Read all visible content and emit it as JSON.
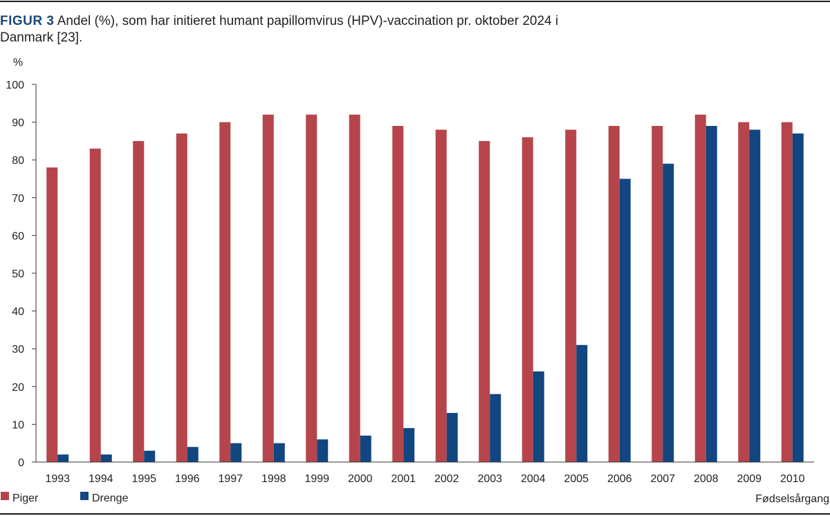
{
  "caption": {
    "label": "FIGUR 3",
    "text": "Andel (%), som har initieret humant papillomvirus (HPV)-vaccination pr. oktober 2024 i Danmark [23]."
  },
  "chart_data": {
    "type": "bar",
    "title": "",
    "ylabel": "%",
    "xlabel": "Fødselsårgang",
    "ylim": [
      0,
      100
    ],
    "yticks": [
      0,
      10,
      20,
      30,
      40,
      50,
      60,
      70,
      80,
      90,
      100
    ],
    "grid": false,
    "legend_position": "bottom-left",
    "categories": [
      "1993",
      "1994",
      "1995",
      "1996",
      "1997",
      "1998",
      "1999",
      "2000",
      "2001",
      "2002",
      "2003",
      "2004",
      "2005",
      "2006",
      "2007",
      "2008",
      "2009",
      "2010"
    ],
    "series": [
      {
        "name": "Piger",
        "color": "#b5454a",
        "values": [
          78,
          83,
          85,
          87,
          90,
          92,
          92,
          92,
          89,
          88,
          85,
          86,
          88,
          89,
          89,
          92,
          90,
          90
        ]
      },
      {
        "name": "Drenge",
        "color": "#124680",
        "values": [
          2,
          2,
          3,
          4,
          5,
          5,
          6,
          7,
          9,
          13,
          18,
          24,
          31,
          75,
          79,
          89,
          88,
          87
        ]
      }
    ]
  }
}
